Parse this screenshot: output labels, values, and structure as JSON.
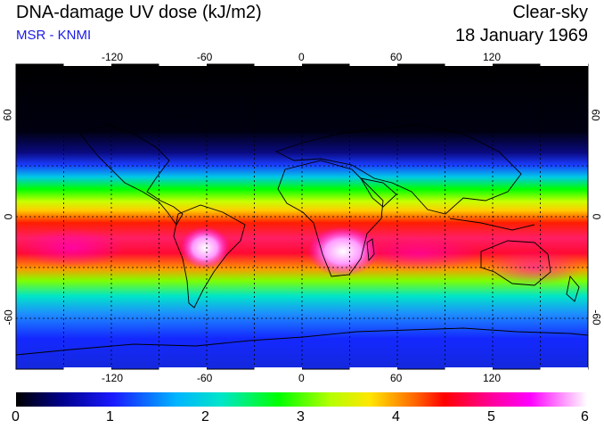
{
  "title": "DNA-damage UV dose (kJ/m2)",
  "subtitle": "MSR - KNMI",
  "sky_condition": "Clear-sky",
  "date": "18 January 1969",
  "map": {
    "projection": "equirectangular",
    "lon_range": [
      -180,
      180
    ],
    "lat_range": [
      -90,
      90
    ],
    "lon_ticks": [
      "-120",
      "-60",
      "0",
      "60",
      "120"
    ],
    "lat_ticks_left": [
      "60",
      "0",
      "-60"
    ],
    "lat_ticks_right": [
      "60",
      "0",
      "-60"
    ]
  },
  "colorbar": {
    "min": 0,
    "max": 6,
    "labels": [
      "0",
      "1",
      "2",
      "3",
      "4",
      "5",
      "6"
    ],
    "colors": [
      "#000000",
      "#1a1aff",
      "#00e6e6",
      "#00ff00",
      "#ffff00",
      "#ff0000",
      "#ff00ff",
      "#ffffff"
    ]
  }
}
